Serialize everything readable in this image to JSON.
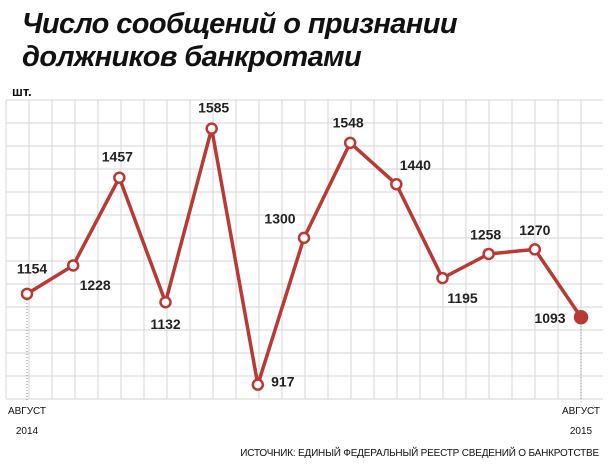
{
  "chart_data": {
    "type": "line",
    "title": "Число сообщений о признании должников банкротами",
    "y_label": "шт.",
    "source": "ИСТОЧНИК: ЕДИНЫЙ ФЕДЕРАЛЬНЫЙ РЕЕСТР СВЕДЕНИЙ О БАНКРОТСТВЕ",
    "categories": [
      "АВГУСТ 2014",
      null,
      null,
      null,
      null,
      null,
      null,
      null,
      null,
      null,
      null,
      null,
      "АВГУСТ 2015"
    ],
    "series": [
      {
        "name": "Число сообщений",
        "color": "#b83a34",
        "values": [
          1154,
          1228,
          1457,
          1132,
          1585,
          917,
          1300,
          1548,
          1440,
          1195,
          1258,
          1270,
          1093
        ]
      }
    ],
    "ylim": [
      890,
      1665
    ],
    "grid": true
  }
}
